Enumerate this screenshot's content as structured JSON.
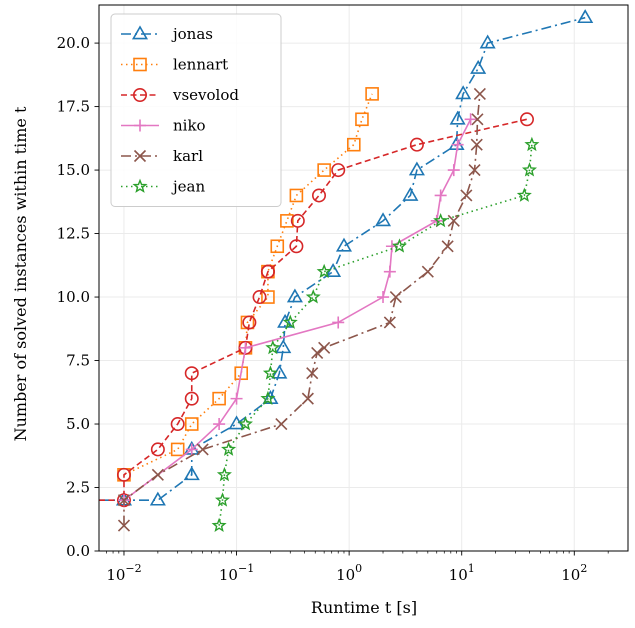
{
  "chart_data": {
    "type": "line",
    "xscale": "log",
    "title": "",
    "xlabel": "Runtime t [s]",
    "ylabel": "Number of solved instances within time t",
    "xlim": [
      0.006,
      300
    ],
    "ylim": [
      0,
      21.5
    ],
    "grid": true,
    "legend_position": "top-left",
    "x_ticks": [
      {
        "value": 0.01,
        "base": "10",
        "exp": "−2"
      },
      {
        "value": 0.1,
        "base": "10",
        "exp": "−1"
      },
      {
        "value": 1,
        "base": "10",
        "exp": "0"
      },
      {
        "value": 10,
        "base": "10",
        "exp": "1"
      },
      {
        "value": 100,
        "base": "10",
        "exp": "2"
      }
    ],
    "y_ticks": [
      {
        "value": 0,
        "label": "0.0"
      },
      {
        "value": 2.5,
        "label": "2.5"
      },
      {
        "value": 5,
        "label": "5.0"
      },
      {
        "value": 7.5,
        "label": "7.5"
      },
      {
        "value": 10,
        "label": "10.0"
      },
      {
        "value": 12.5,
        "label": "12.5"
      },
      {
        "value": 15,
        "label": "15.0"
      },
      {
        "value": 17.5,
        "label": "17.5"
      },
      {
        "value": 20,
        "label": "20.0"
      }
    ],
    "series": [
      {
        "name": "jonas",
        "color": "#1f77b4",
        "marker": "triangle",
        "dash": "10,4,2,4",
        "points": [
          [
            0.006,
            2
          ],
          [
            0.01,
            2
          ],
          [
            0.02,
            2
          ],
          [
            0.04,
            3
          ],
          [
            0.04,
            4
          ],
          [
            0.1,
            5
          ],
          [
            0.2,
            6
          ],
          [
            0.24,
            7
          ],
          [
            0.26,
            8
          ],
          [
            0.27,
            9
          ],
          [
            0.33,
            10
          ],
          [
            0.72,
            11
          ],
          [
            0.9,
            12
          ],
          [
            2,
            13
          ],
          [
            3.5,
            14
          ],
          [
            4,
            15
          ],
          [
            9,
            16
          ],
          [
            9.2,
            17
          ],
          [
            10.3,
            18
          ],
          [
            14,
            19
          ],
          [
            17,
            20
          ],
          [
            125,
            21
          ]
        ]
      },
      {
        "name": "lennart",
        "color": "#ff7f0e",
        "marker": "square",
        "dash": "1.5,3.5",
        "points": [
          [
            0.01,
            3
          ],
          [
            0.03,
            4
          ],
          [
            0.04,
            5
          ],
          [
            0.07,
            6
          ],
          [
            0.11,
            7
          ],
          [
            0.12,
            8
          ],
          [
            0.125,
            9
          ],
          [
            0.19,
            10
          ],
          [
            0.19,
            11
          ],
          [
            0.23,
            12
          ],
          [
            0.28,
            13
          ],
          [
            0.34,
            14
          ],
          [
            0.6,
            15
          ],
          [
            1.1,
            16
          ],
          [
            1.3,
            17
          ],
          [
            1.6,
            18
          ]
        ]
      },
      {
        "name": "vsevolod",
        "color": "#d62728",
        "marker": "circle",
        "dash": "6,3.5",
        "points": [
          [
            0.006,
            2
          ],
          [
            0.01,
            2
          ],
          [
            0.01,
            3
          ],
          [
            0.02,
            4
          ],
          [
            0.03,
            5
          ],
          [
            0.04,
            6
          ],
          [
            0.04,
            7
          ],
          [
            0.12,
            8
          ],
          [
            0.13,
            9
          ],
          [
            0.16,
            10
          ],
          [
            0.19,
            11
          ],
          [
            0.19,
            11
          ],
          [
            0.34,
            12
          ],
          [
            0.35,
            13
          ],
          [
            0.54,
            14
          ],
          [
            0.8,
            15
          ],
          [
            4,
            16
          ],
          [
            38,
            17
          ]
        ]
      },
      {
        "name": "niko",
        "color": "#e377c2",
        "marker": "plus",
        "dash": "",
        "points": [
          [
            0.01,
            2
          ],
          [
            0.04,
            4
          ],
          [
            0.07,
            5
          ],
          [
            0.1,
            6
          ],
          [
            0.12,
            8
          ],
          [
            0.8,
            9
          ],
          [
            2,
            10
          ],
          [
            2.3,
            11
          ],
          [
            2.4,
            12
          ],
          [
            6,
            13
          ],
          [
            6.5,
            14
          ],
          [
            8.5,
            15
          ],
          [
            9.2,
            16
          ],
          [
            12,
            17
          ]
        ]
      },
      {
        "name": "karl",
        "color": "#8c564b",
        "marker": "x",
        "dash": "10,4,2,4",
        "points": [
          [
            0.01,
            1
          ],
          [
            0.01,
            2
          ],
          [
            0.02,
            3
          ],
          [
            0.05,
            4
          ],
          [
            0.25,
            5
          ],
          [
            0.43,
            6
          ],
          [
            0.47,
            7
          ],
          [
            0.52,
            7.8
          ],
          [
            0.6,
            8
          ],
          [
            2.3,
            9
          ],
          [
            2.6,
            10
          ],
          [
            5,
            11
          ],
          [
            7.5,
            12
          ],
          [
            8.5,
            13
          ],
          [
            11,
            14
          ],
          [
            13,
            15
          ],
          [
            13.6,
            16
          ],
          [
            13.8,
            17
          ],
          [
            14.5,
            18
          ]
        ]
      },
      {
        "name": "jean",
        "color": "#2ca02c",
        "marker": "star",
        "dash": "1.5,3.5",
        "points": [
          [
            0.07,
            1
          ],
          [
            0.075,
            2
          ],
          [
            0.078,
            3
          ],
          [
            0.085,
            4
          ],
          [
            0.12,
            5
          ],
          [
            0.19,
            6
          ],
          [
            0.2,
            7
          ],
          [
            0.21,
            8
          ],
          [
            0.3,
            9
          ],
          [
            0.48,
            10
          ],
          [
            0.6,
            11
          ],
          [
            2.8,
            12
          ],
          [
            6.5,
            13
          ],
          [
            36,
            14
          ],
          [
            40,
            15
          ],
          [
            42,
            16
          ]
        ]
      }
    ]
  }
}
